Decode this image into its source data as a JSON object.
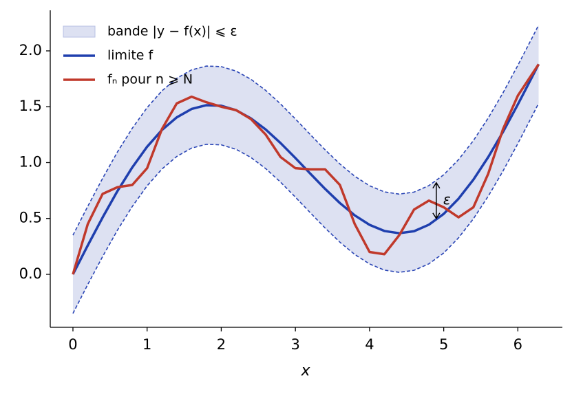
{
  "chart_data": {
    "type": "line",
    "xlabel": "x",
    "x": [
      0,
      0.2,
      0.4,
      0.6,
      0.8,
      1.0,
      1.2,
      1.4,
      1.6,
      1.8,
      2.0,
      2.2,
      2.4,
      2.6,
      2.8,
      3.0,
      3.2,
      3.4,
      3.6,
      3.8,
      4.0,
      4.2,
      4.4,
      4.6,
      4.8,
      5.0,
      5.2,
      5.4,
      5.6,
      5.8,
      6.0,
      6.2,
      6.28
    ],
    "band": {
      "name": "bande |y − f(x)| ⩽ ε",
      "color": "#dde1f2",
      "edge_color": "#2a45b5",
      "upper": [
        0.35,
        0.609,
        0.859,
        1.095,
        1.307,
        1.492,
        1.642,
        1.755,
        1.83,
        1.864,
        1.859,
        1.819,
        1.746,
        1.646,
        1.525,
        1.391,
        1.252,
        1.115,
        0.988,
        0.878,
        0.793,
        0.738,
        0.718,
        0.736,
        0.794,
        0.891,
        1.027,
        1.197,
        1.399,
        1.625,
        1.871,
        2.127,
        2.231
      ],
      "lower": [
        -0.35,
        -0.091,
        0.159,
        0.395,
        0.607,
        0.792,
        0.942,
        1.055,
        1.13,
        1.164,
        1.159,
        1.119,
        1.046,
        0.946,
        0.825,
        0.691,
        0.552,
        0.415,
        0.288,
        0.178,
        0.093,
        0.038,
        0.018,
        0.036,
        0.094,
        0.191,
        0.327,
        0.497,
        0.699,
        0.925,
        1.171,
        1.427,
        1.531
      ]
    },
    "series": [
      {
        "name": "limite f",
        "color": "#1f3fae",
        "values": [
          0,
          0.259,
          0.509,
          0.745,
          0.957,
          1.142,
          1.292,
          1.405,
          1.48,
          1.514,
          1.509,
          1.469,
          1.396,
          1.296,
          1.175,
          1.041,
          0.902,
          0.765,
          0.638,
          0.528,
          0.443,
          0.388,
          0.368,
          0.386,
          0.444,
          0.541,
          0.677,
          0.847,
          1.049,
          1.275,
          1.521,
          1.777,
          1.881
        ]
      },
      {
        "name": "fₙ pour n ⩾ N",
        "color": "#c0392b",
        "values": [
          0,
          0.45,
          0.72,
          0.78,
          0.8,
          0.95,
          1.3,
          1.53,
          1.59,
          1.54,
          1.5,
          1.47,
          1.39,
          1.25,
          1.05,
          0.95,
          0.94,
          0.94,
          0.8,
          0.45,
          0.2,
          0.18,
          0.35,
          0.58,
          0.66,
          0.6,
          0.51,
          0.6,
          0.9,
          1.3,
          1.6,
          1.8,
          1.88
        ]
      }
    ],
    "annotation": {
      "text": "ε",
      "x": 4.9,
      "y_from": 0.82,
      "y_to": 0.5
    },
    "xlim": [
      -0.306,
      6.6
    ],
    "ylim": [
      -0.474,
      2.363
    ],
    "xticks": [
      0,
      1,
      2,
      3,
      4,
      5,
      6
    ],
    "yticks": [
      {
        "value": 0,
        "label": "0.0"
      },
      {
        "value": 0.5,
        "label": "0.5"
      },
      {
        "value": 1,
        "label": "1.0"
      },
      {
        "value": 1.5,
        "label": "1.5"
      },
      {
        "value": 2,
        "label": "2.0"
      }
    ]
  }
}
